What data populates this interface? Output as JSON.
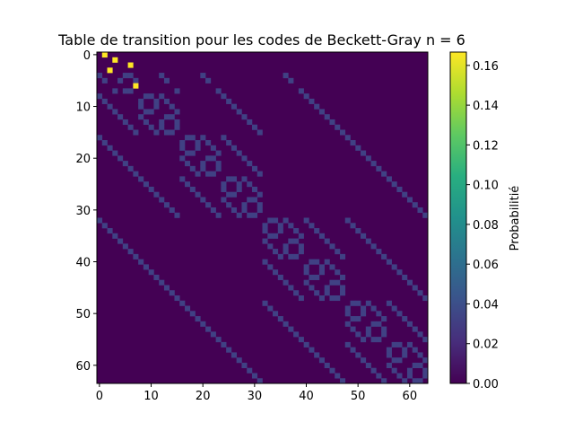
{
  "chart_data": {
    "type": "heatmap",
    "title": "Table de transition pour les codes de Beckett-Gray n = 6",
    "colorbar_label": "Probabilitié",
    "n_bits": 6,
    "size": 64,
    "colormap": "viridis",
    "xlim": [
      -0.5,
      63.5
    ],
    "ylim": [
      63.5,
      -0.5
    ],
    "x_ticks": [
      0,
      10,
      20,
      30,
      40,
      50,
      60
    ],
    "y_ticks": [
      0,
      10,
      20,
      30,
      40,
      50,
      60
    ],
    "colorbar_range": [
      0,
      0.1667
    ],
    "colorbar_ticks": [
      "0.00",
      "0.02",
      "0.04",
      "0.06",
      "0.08",
      "0.10",
      "0.12",
      "0.14",
      "0.16"
    ],
    "background_value": 0,
    "hamming_neighbor_value": 0.0323,
    "high_entries": [
      {
        "row": 0,
        "col": 1,
        "value": 0.1667
      },
      {
        "row": 1,
        "col": 3,
        "value": 0.1667
      },
      {
        "row": 2,
        "col": 6,
        "value": 0.1667
      },
      {
        "row": 3,
        "col": 2,
        "value": 0.1667
      },
      {
        "row": 6,
        "col": 7,
        "value": 0.1667
      }
    ],
    "zero_rows": [
      0,
      1,
      2,
      3,
      6
    ]
  }
}
